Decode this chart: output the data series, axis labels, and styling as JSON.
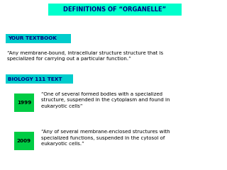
{
  "bg_color": "#ffffff",
  "title": "DEFINITIONS OF “ORGANELLE”",
  "title_bg": "#00ffcc",
  "title_color": "#000080",
  "textbook_label": "YOUR TEXTBOOK",
  "textbook_label_bg": "#00cccc",
  "textbook_label_color": "#000080",
  "textbook_text": "“Any membrane-bound, intracellular structure structure that is\nspecialized for carrying out a particular function.”",
  "bio_label": "BIOLOGY 111 TEXT",
  "bio_label_bg": "#00cccc",
  "bio_label_color": "#000080",
  "year1": "1999",
  "year1_bg": "#00cc44",
  "year1_text": "“One of several formed bodies with a specialized\nstructure, suspended in the cytoplasm and found in\neukaryotic cells”",
  "year2": "2009",
  "year2_bg": "#00cc44",
  "year2_text": "“Any of several membrane-enclosed structures with\nspecialized functions, suspended in the cytosol of\neukaryotic cells.”",
  "text_color": "#000000",
  "bold_text_color": "#000080"
}
